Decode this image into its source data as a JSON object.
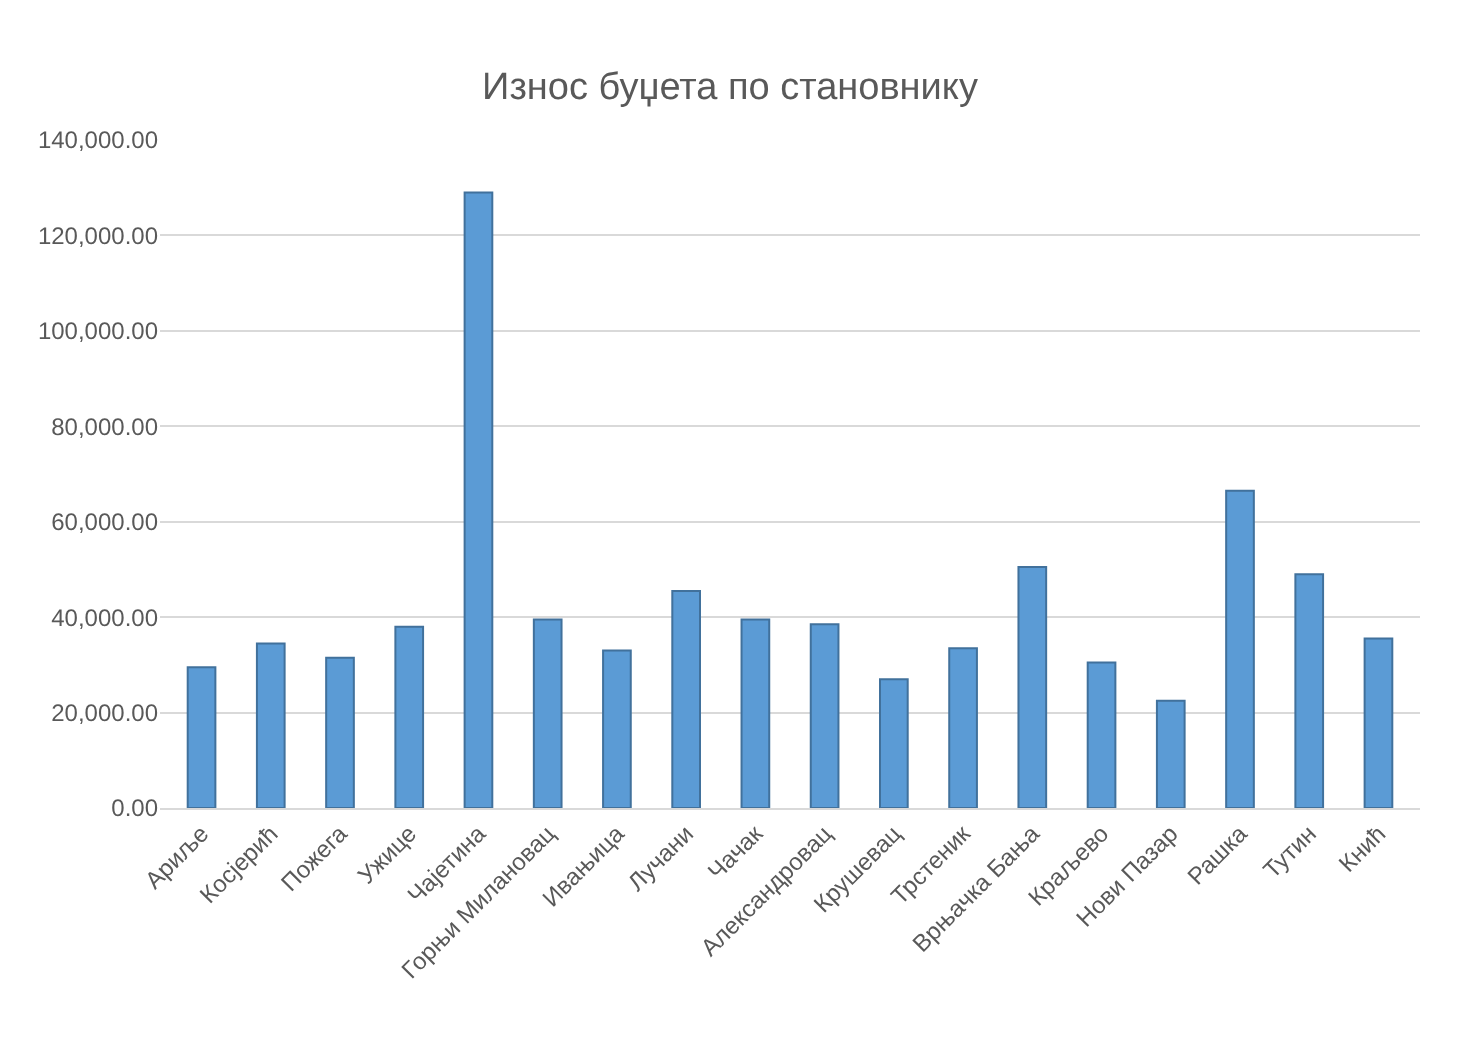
{
  "chart_data": {
    "type": "bar",
    "title": "Износ буџета по становнику",
    "categories": [
      "Ариље",
      "Косјерић",
      "Пожега",
      "Ужице",
      "Чајетина",
      "Горњи Милановац",
      "Ивањица",
      "Лучани",
      "Чачак",
      "Александровац",
      "Крушевац",
      "Трстеник",
      "Врњачка Бања",
      "Краљево",
      "Нови Пазар",
      "Рашка",
      "Тутин",
      "Кнић"
    ],
    "values": [
      29500,
      34500,
      31500,
      38000,
      129000,
      39500,
      33000,
      45500,
      39500,
      38500,
      27000,
      33500,
      50500,
      30500,
      22500,
      66500,
      49000,
      35500
    ],
    "color": "#5b9bd5",
    "ylim": [
      0,
      140000
    ],
    "yticks": [
      {
        "value": 0,
        "label": "0.00"
      },
      {
        "value": 20000,
        "label": "20,000.00"
      },
      {
        "value": 40000,
        "label": "40,000.00"
      },
      {
        "value": 60000,
        "label": "60,000.00"
      },
      {
        "value": 80000,
        "label": "80,000.00"
      },
      {
        "value": 100000,
        "label": "100,000.00"
      },
      {
        "value": 120000,
        "label": "120,000.00"
      },
      {
        "value": 140000,
        "label": "140,000.00"
      }
    ],
    "grid": "y"
  }
}
